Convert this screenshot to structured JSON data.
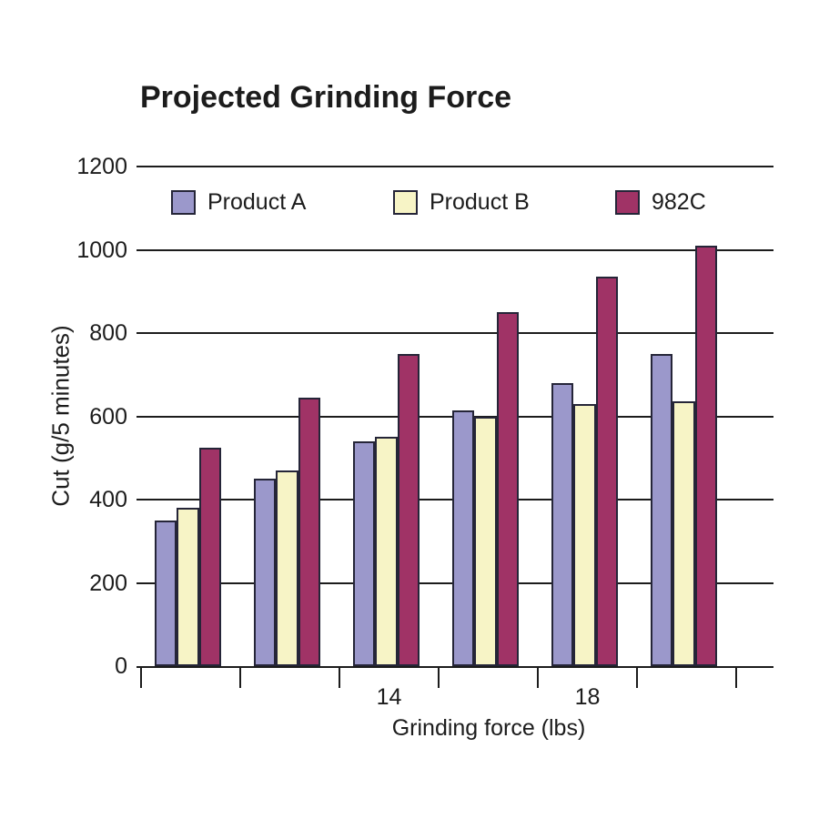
{
  "chart_data": {
    "type": "bar",
    "title": "Projected Grinding Force",
    "xlabel": "Grinding force (lbs)",
    "ylabel": "Cut (g/5 minutes)",
    "ylim": [
      0,
      1200
    ],
    "yticks": [
      0,
      200,
      400,
      600,
      800,
      1000,
      1200
    ],
    "groups": 6,
    "x_tick_labels": [
      "",
      "",
      "14",
      "",
      "18",
      ""
    ],
    "grid": "horizontal",
    "legend_position": "top-inside",
    "series": [
      {
        "name": "Product A",
        "color": "#9b98cb",
        "values": [
          350,
          450,
          540,
          615,
          680,
          750
        ]
      },
      {
        "name": "Product B",
        "color": "#f7f4c6",
        "values": [
          380,
          470,
          550,
          600,
          630,
          635
        ]
      },
      {
        "name": "982C",
        "color": "#a03366",
        "values": [
          525,
          645,
          750,
          850,
          935,
          1010
        ]
      }
    ]
  },
  "colors": {
    "text": "#1c1c1c",
    "bar_border": "#252538",
    "gridline": "#1c1c1c",
    "background": "#ffffff"
  }
}
